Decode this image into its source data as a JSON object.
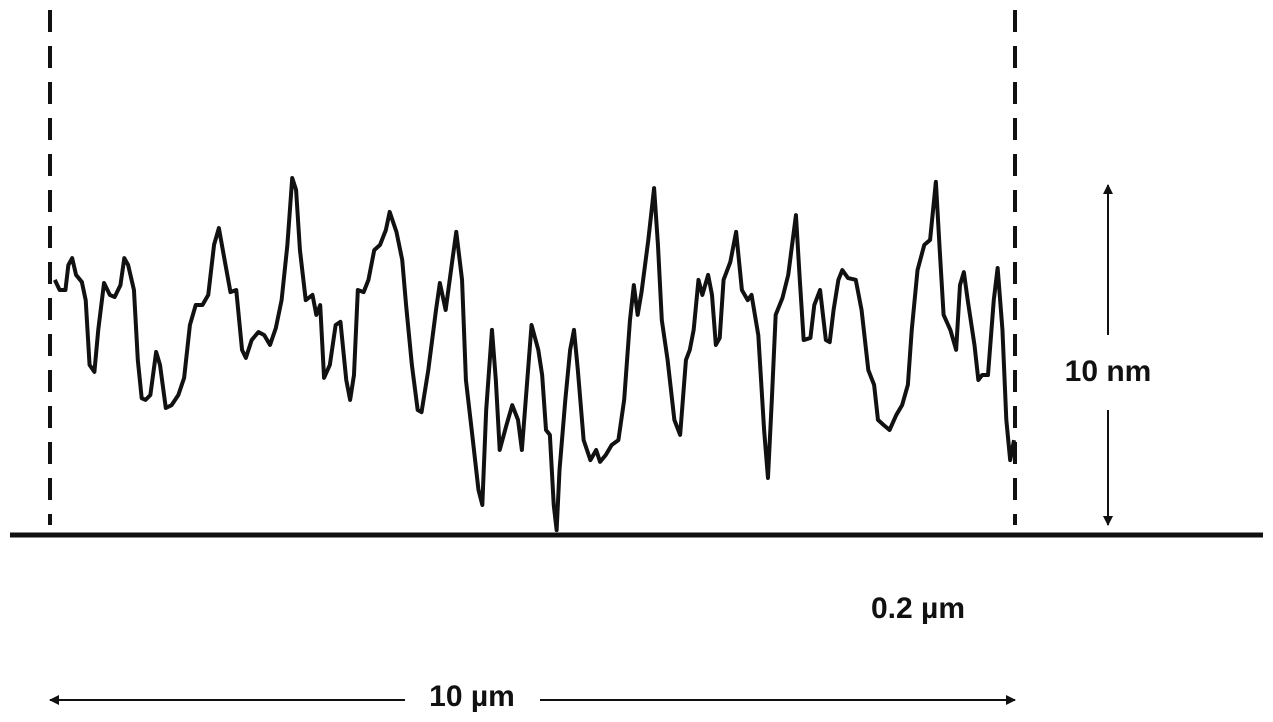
{
  "chart_data": {
    "type": "line",
    "xlim": [
      0,
      10
    ],
    "ylim": [
      0,
      10
    ],
    "annotations": {
      "height": "10 nm",
      "scale": "0.2 µm",
      "width": "10 µm"
    },
    "x": [
      0.05,
      0.1,
      0.16,
      0.19,
      0.23,
      0.27,
      0.33,
      0.37,
      0.41,
      0.46,
      0.5,
      0.56,
      0.62,
      0.67,
      0.73,
      0.77,
      0.81,
      0.87,
      0.91,
      0.95,
      0.99,
      1.04,
      1.1,
      1.14,
      1.2,
      1.26,
      1.33,
      1.39,
      1.45,
      1.51,
      1.58,
      1.64,
      1.7,
      1.75,
      1.8,
      1.87,
      1.93,
      1.99,
      2.03,
      2.09,
      2.16,
      2.22,
      2.28,
      2.34,
      2.4,
      2.46,
      2.51,
      2.55,
      2.59,
      2.65,
      2.72,
      2.76,
      2.8,
      2.84,
      2.9,
      2.96,
      3.01,
      3.07,
      3.11,
      3.15,
      3.19,
      3.25,
      3.3,
      3.36,
      3.42,
      3.48,
      3.52,
      3.59,
      3.65,
      3.69,
      3.75,
      3.81,
      3.85,
      3.92,
      4.0,
      4.04,
      4.1,
      4.17,
      4.21,
      4.27,
      4.31,
      4.37,
      4.44,
      4.48,
      4.52,
      4.58,
      4.62,
      4.66,
      4.73,
      4.79,
      4.85,
      4.89,
      4.93,
      4.99,
      5.06,
      5.1,
      5.14,
      5.18,
      5.22,
      5.25,
      5.28,
      5.34,
      5.39,
      5.43,
      5.47,
      5.53,
      5.6,
      5.66,
      5.7,
      5.76,
      5.82,
      5.89,
      5.95,
      6.01,
      6.05,
      6.09,
      6.13,
      6.2,
      6.26,
      6.3,
      6.34,
      6.4,
      6.47,
      6.53,
      6.59,
      6.63,
      6.67,
      6.72,
      6.76,
      6.82,
      6.86,
      6.9,
      6.94,
      6.98,
      7.05,
      7.11,
      7.17,
      7.23,
      7.27,
      7.34,
      7.4,
      7.44,
      7.48,
      7.52,
      7.59,
      7.65,
      7.69,
      7.73,
      7.77,
      7.81,
      7.88,
      7.92,
      7.98,
      8.04,
      8.08,
      8.12,
      8.17,
      8.21,
      8.27,
      8.35,
      8.41,
      8.48,
      8.54,
      8.58,
      8.64,
      8.7,
      8.77,
      8.83,
      8.89,
      8.93,
      8.99,
      9.06,
      9.12,
      9.18,
      9.22,
      9.26,
      9.33,
      9.39,
      9.43,
      9.47,
      9.51,
      9.58,
      9.62,
      9.66,
      9.72,
      9.78,
      9.82,
      9.87,
      9.91,
      9.95,
      9.99
    ],
    "series": [
      {
        "color": "#111111",
        "values": [
          7.29,
          7.0,
          7.0,
          7.71,
          7.91,
          7.43,
          7.23,
          6.71,
          4.86,
          4.66,
          5.86,
          7.2,
          6.86,
          6.8,
          7.14,
          7.91,
          7.71,
          7.0,
          5.0,
          3.91,
          3.86,
          4.0,
          5.23,
          4.86,
          3.63,
          3.71,
          4.0,
          4.49,
          6.0,
          6.57,
          6.57,
          6.86,
          8.29,
          8.77,
          8.0,
          6.94,
          7.0,
          5.29,
          5.06,
          5.57,
          5.8,
          5.71,
          5.43,
          5.91,
          6.71,
          8.29,
          10.2,
          9.86,
          8.14,
          6.71,
          6.86,
          6.29,
          6.57,
          4.49,
          4.86,
          6.0,
          6.09,
          4.43,
          3.86,
          4.57,
          7.0,
          6.94,
          7.29,
          8.14,
          8.29,
          8.71,
          9.23,
          8.66,
          7.86,
          6.57,
          4.86,
          3.57,
          3.51,
          4.71,
          6.43,
          7.2,
          6.43,
          7.86,
          8.66,
          7.29,
          4.43,
          3.0,
          1.29,
          0.86,
          3.57,
          5.86,
          4.43,
          2.43,
          3.14,
          3.71,
          3.29,
          2.43,
          3.86,
          6.0,
          5.29,
          4.57,
          3.0,
          2.86,
          0.86,
          0.14,
          1.86,
          3.86,
          5.29,
          5.86,
          4.71,
          2.71,
          2.14,
          2.43,
          2.09,
          2.29,
          2.57,
          2.71,
          3.86,
          6.14,
          7.14,
          6.29,
          6.94,
          8.43,
          9.91,
          8.29,
          6.14,
          5.0,
          3.29,
          2.86,
          5.0,
          5.29,
          5.86,
          7.29,
          6.86,
          7.43,
          6.86,
          5.43,
          5.63,
          7.29,
          7.8,
          8.66,
          7.0,
          6.71,
          6.86,
          5.71,
          3.0,
          1.63,
          3.86,
          6.29,
          6.77,
          7.43,
          8.29,
          9.14,
          7.29,
          5.57,
          5.63,
          6.57,
          7.0,
          5.57,
          5.51,
          6.43,
          7.29,
          7.57,
          7.34,
          7.29,
          6.43,
          4.71,
          4.29,
          3.29,
          3.14,
          3.0,
          3.43,
          3.71,
          4.29,
          5.86,
          7.57,
          8.29,
          8.43,
          10.09,
          8.14,
          6.29,
          5.86,
          5.29,
          7.14,
          7.51,
          6.71,
          5.43,
          4.43,
          4.57,
          4.57,
          6.71,
          7.63,
          5.86,
          3.29,
          2.14,
          2.71
        ]
      }
    ]
  }
}
